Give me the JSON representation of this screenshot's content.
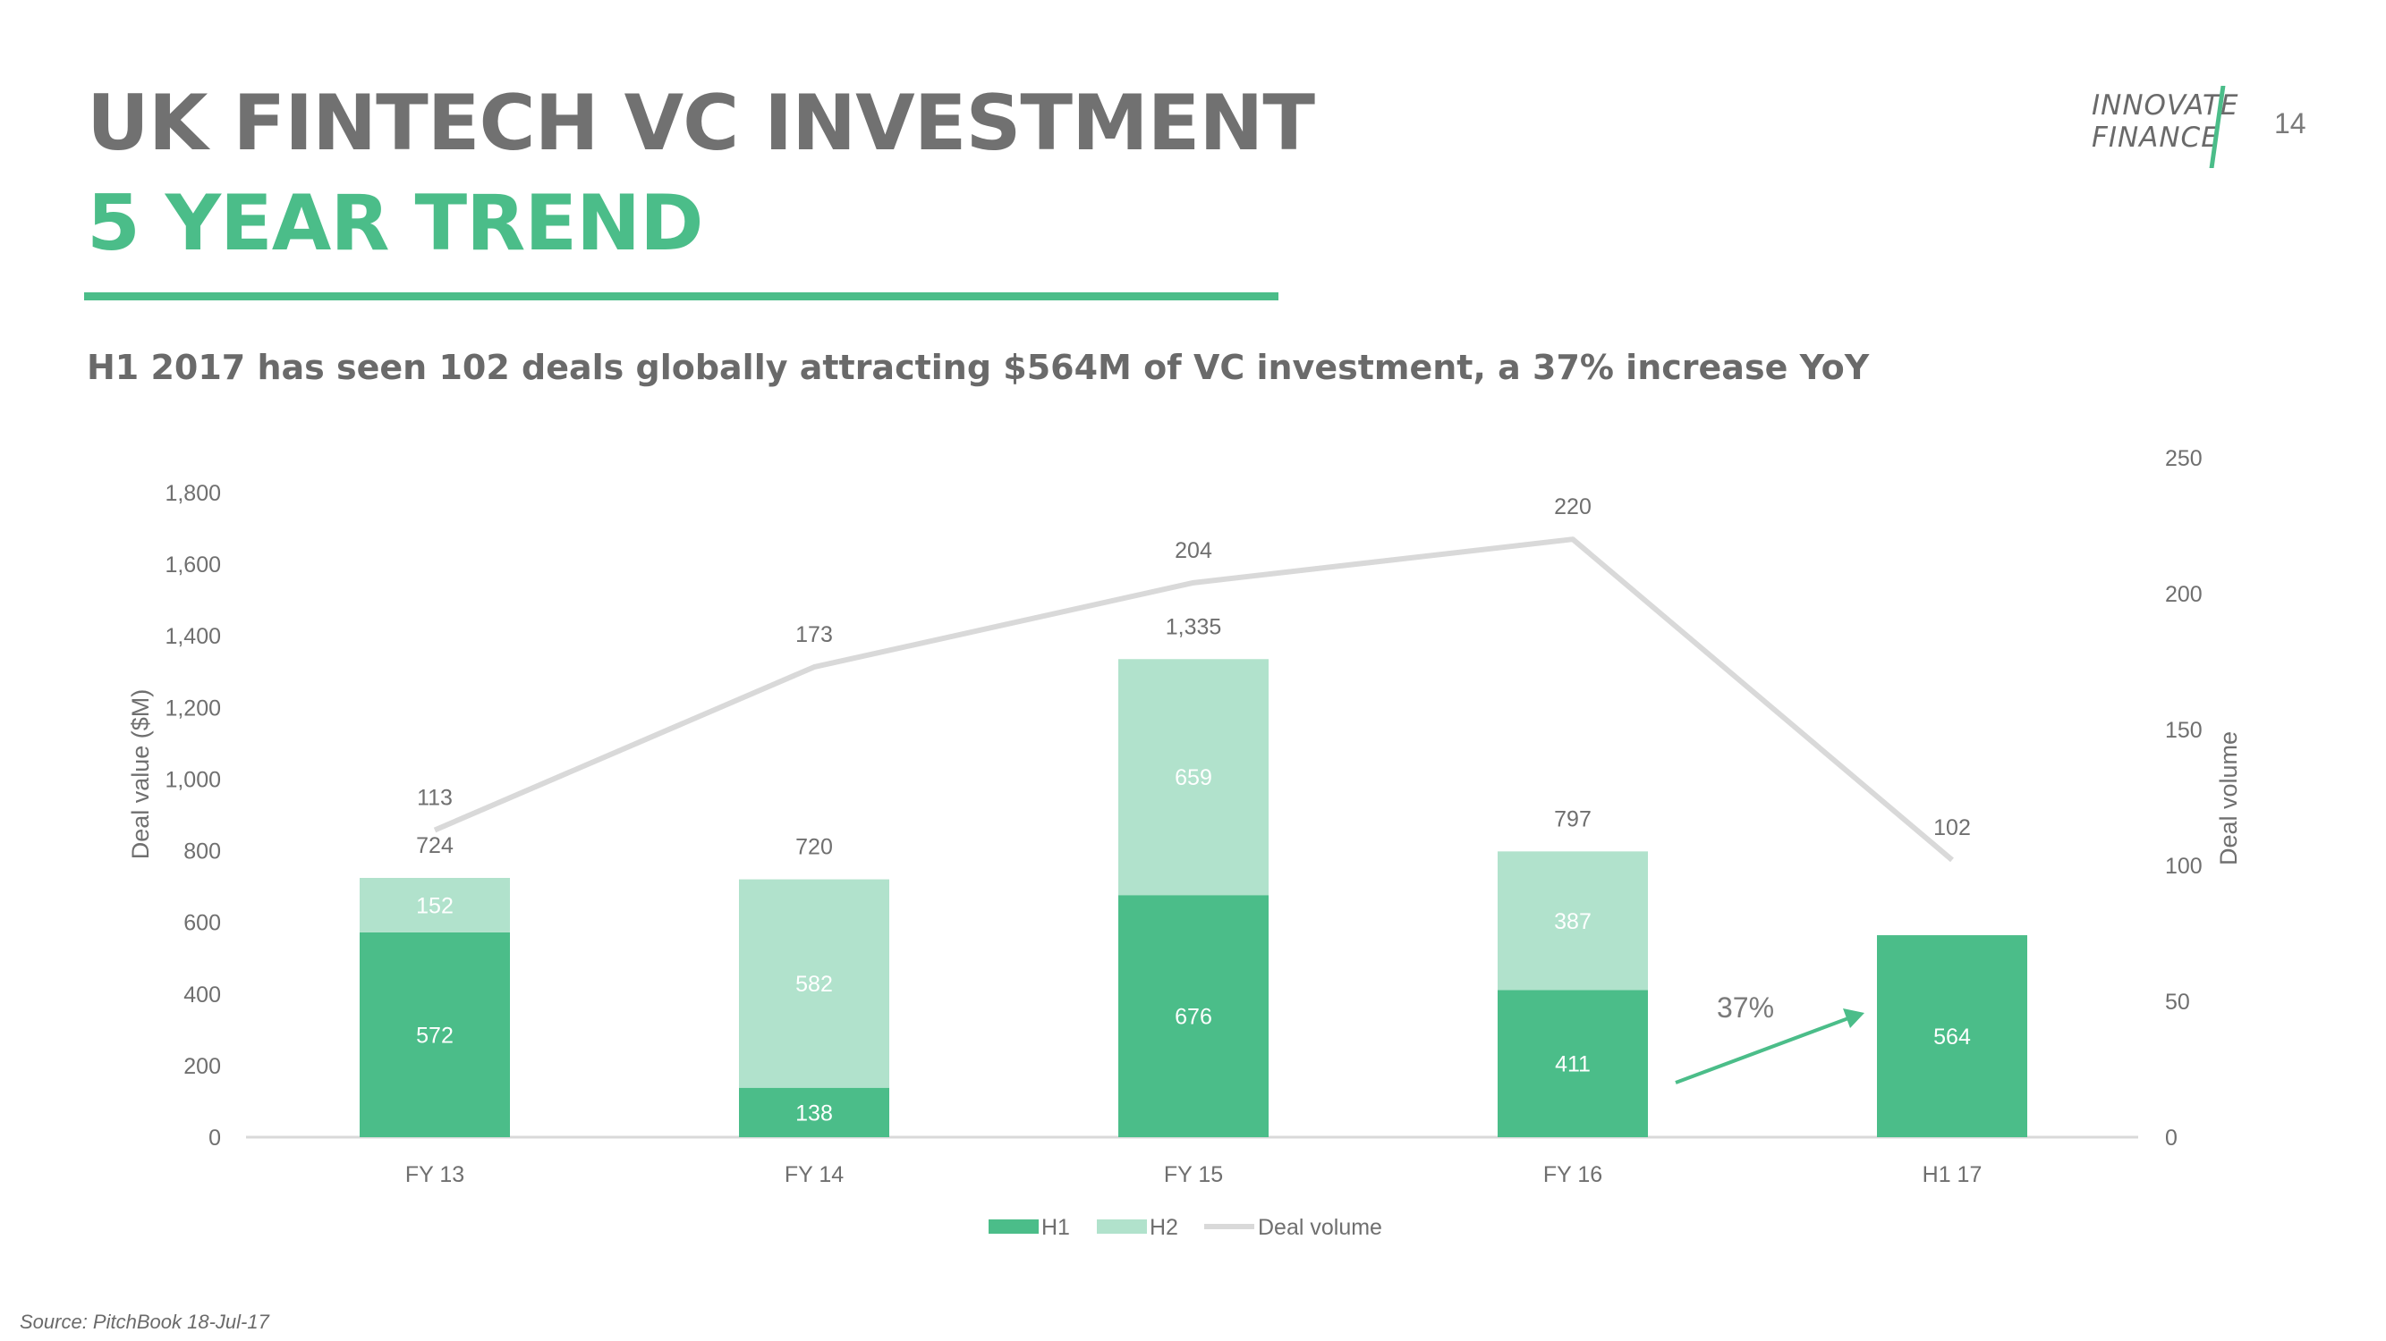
{
  "header": {
    "title_line1": "UK FINTECH VC INVESTMENT",
    "title_line2": "5 YEAR TREND",
    "subtitle": "H1 2017 has seen 102 deals globally attracting $564M of VC investment, a 37% increase YoY",
    "logo_line1": "INNOVATE",
    "logo_line2": "FINANCE",
    "page_number": "14"
  },
  "footer": {
    "source": "Source: PitchBook 18-Jul-17"
  },
  "colors": {
    "accent": "#4bbd89",
    "h1": "#4bbd89",
    "h2": "#b1e2cc",
    "line": "#d9d9d9",
    "text_gray": "#717171"
  },
  "chart_data": {
    "type": "bar",
    "stacked": true,
    "categories": [
      "FY 13",
      "FY 14",
      "FY 15",
      "FY 16",
      "H1 17"
    ],
    "series": [
      {
        "name": "H1",
        "values": [
          572,
          138,
          676,
          411,
          564
        ],
        "labels": [
          "572",
          "138",
          "676",
          "411",
          "564"
        ]
      },
      {
        "name": "H2",
        "values": [
          152,
          582,
          659,
          387,
          null
        ],
        "labels": [
          "152",
          "582",
          "659",
          "387",
          ""
        ]
      }
    ],
    "totals": [
      "724",
      "720",
      "1,335",
      "797",
      ""
    ],
    "line_series": {
      "name": "Deal volume",
      "axis": "right",
      "values": [
        113,
        173,
        204,
        220,
        102
      ],
      "labels": [
        "113",
        "173",
        "204",
        "220",
        "102"
      ]
    },
    "ylabel": "Deal value ($M)",
    "ylabel_right": "Deal volume",
    "ylim": [
      0,
      1800
    ],
    "yticks": [
      "0",
      "200",
      "400",
      "600",
      "800",
      "1,000",
      "1,200",
      "1,400",
      "1,600",
      "1,800"
    ],
    "ylim_right": [
      0,
      250
    ],
    "yticks_right": [
      "0",
      "50",
      "100",
      "150",
      "200",
      "250"
    ],
    "annotation": {
      "text": "37%"
    },
    "legend": {
      "position": "bottom",
      "items": [
        "H1",
        "H2",
        "Deal volume"
      ]
    },
    "grid": false
  }
}
